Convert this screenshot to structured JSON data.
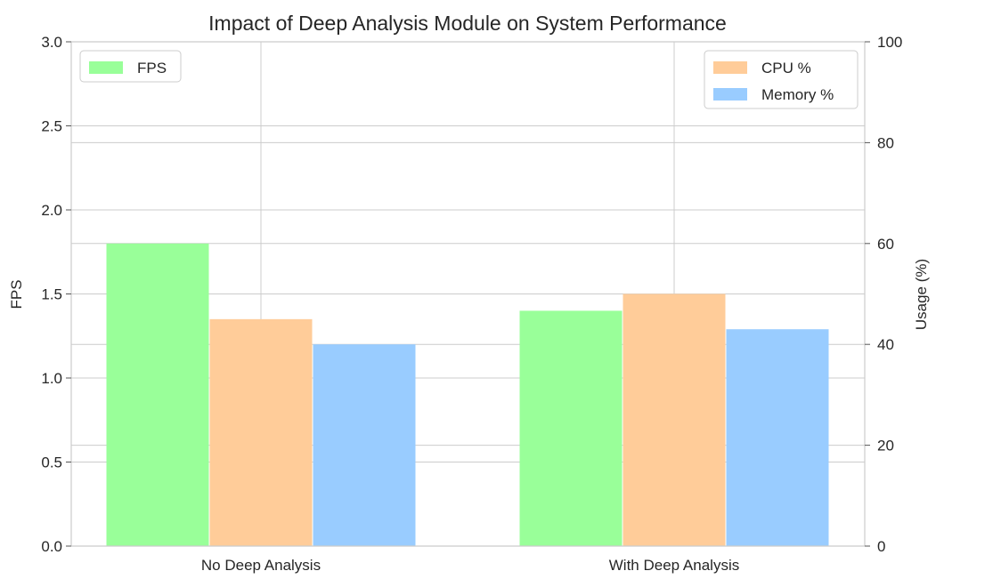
{
  "chart_data": {
    "type": "bar",
    "title": "Impact of Deep Analysis Module on System Performance",
    "categories": [
      "No Deep Analysis",
      "With Deep Analysis"
    ],
    "left_axis": {
      "label": "FPS",
      "ylim": [
        0,
        3.0
      ],
      "ticks": [
        "0.0",
        "0.5",
        "1.0",
        "1.5",
        "2.0",
        "2.5",
        "3.0"
      ]
    },
    "right_axis": {
      "label": "Usage (%)",
      "ylim": [
        0,
        100
      ],
      "ticks": [
        "0",
        "20",
        "40",
        "60",
        "80",
        "100"
      ]
    },
    "series": [
      {
        "name": "FPS",
        "axis": "left",
        "color": "#99ff99",
        "values": [
          1.8,
          1.4
        ]
      },
      {
        "name": "CPU %",
        "axis": "right",
        "color": "#ffcc99",
        "values": [
          45,
          50
        ]
      },
      {
        "name": "Memory %",
        "axis": "right",
        "color": "#99ccff",
        "values": [
          40,
          43
        ]
      }
    ],
    "legends": [
      {
        "position": "top-left",
        "entries": [
          "FPS"
        ]
      },
      {
        "position": "top-right",
        "entries": [
          "CPU %",
          "Memory %"
        ]
      }
    ],
    "grid": true
  }
}
